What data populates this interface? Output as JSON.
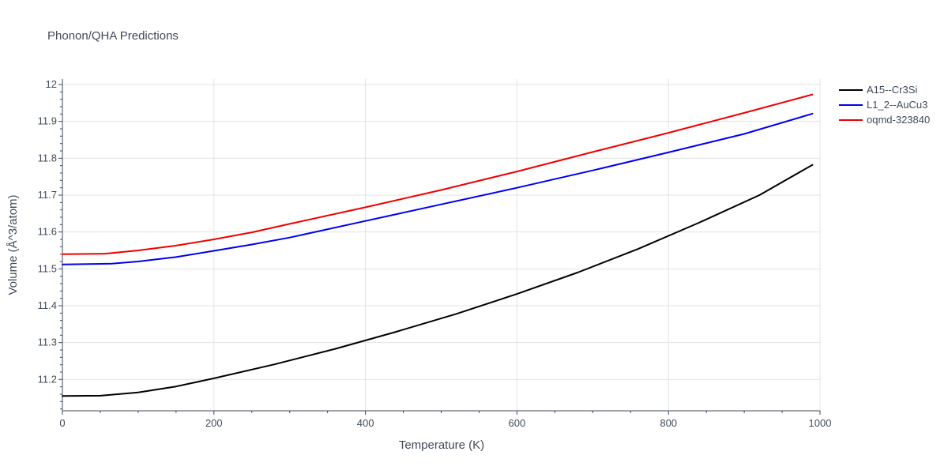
{
  "chart_data": {
    "type": "line",
    "title": "Phonon/QHA Predictions",
    "xlabel": "Temperature (K)",
    "ylabel": "Volume (Å^3/atom)",
    "xlim": [
      0,
      1000
    ],
    "ylim": [
      11.115,
      12.015
    ],
    "xticks": [
      0,
      200,
      400,
      600,
      800,
      1000
    ],
    "yticks": [
      11.2,
      11.3,
      11.4,
      11.5,
      11.6,
      11.7,
      11.8,
      11.9,
      12
    ],
    "grid": true,
    "legend_position": "top-right outside",
    "series": [
      {
        "name": "A15--Cr3Si",
        "color": "#000000",
        "x": [
          0,
          50,
          100,
          150,
          200,
          280,
          360,
          440,
          520,
          600,
          680,
          760,
          840,
          920,
          990
        ],
        "y": [
          11.155,
          11.156,
          11.165,
          11.181,
          11.203,
          11.241,
          11.283,
          11.329,
          11.378,
          11.432,
          11.49,
          11.554,
          11.625,
          11.7,
          11.782
        ]
      },
      {
        "name": "L1_2--AuCu3",
        "color": "#0000ee",
        "x": [
          0,
          65,
          100,
          150,
          200,
          250,
          300,
          400,
          500,
          600,
          700,
          800,
          900,
          990
        ],
        "y": [
          11.512,
          11.514,
          11.52,
          11.532,
          11.549,
          11.566,
          11.585,
          11.63,
          11.675,
          11.72,
          11.767,
          11.816,
          11.866,
          11.921
        ]
      },
      {
        "name": "oqmd-323840",
        "color": "#ee0000",
        "x": [
          0,
          55,
          100,
          150,
          200,
          250,
          300,
          400,
          500,
          600,
          700,
          800,
          900,
          990
        ],
        "y": [
          11.54,
          11.541,
          11.55,
          11.563,
          11.58,
          11.599,
          11.622,
          11.667,
          11.714,
          11.764,
          11.817,
          11.869,
          11.923,
          11.973
        ]
      }
    ]
  }
}
